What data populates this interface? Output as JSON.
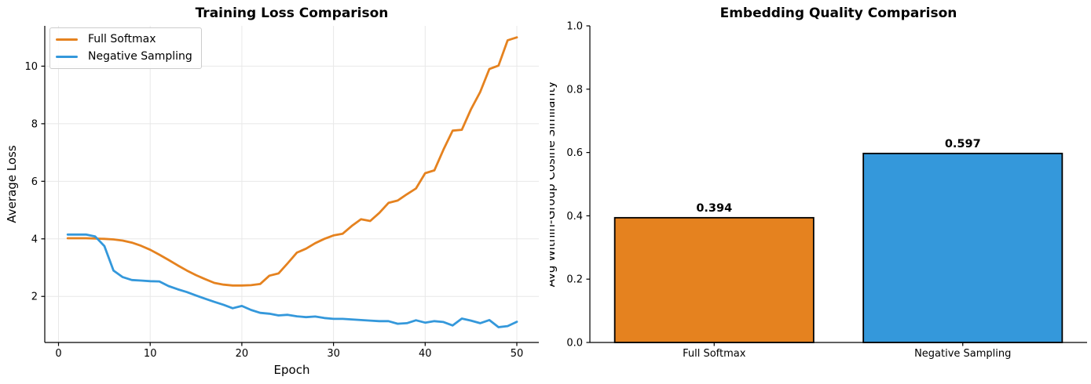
{
  "figure": {
    "background": "#ffffff",
    "text_color": "#000000",
    "grid_color": "#e8e8e8",
    "spine_color": "#000000"
  },
  "chart_data": [
    {
      "id": "training-loss",
      "type": "line",
      "title": "Training Loss Comparison",
      "xlabel": "Epoch",
      "ylabel": "Average Loss",
      "grid": true,
      "legend_position": "upper left",
      "xlim": [
        -1.5,
        52.4
      ],
      "ylim": [
        0.4,
        11.4
      ],
      "xticks": [
        0,
        10,
        20,
        30,
        40,
        50
      ],
      "yticks": [
        2,
        4,
        6,
        8,
        10
      ],
      "x": [
        1,
        2,
        3,
        4,
        5,
        6,
        7,
        8,
        9,
        10,
        11,
        12,
        13,
        14,
        15,
        16,
        17,
        18,
        19,
        20,
        21,
        22,
        23,
        24,
        25,
        26,
        27,
        28,
        29,
        30,
        31,
        32,
        33,
        34,
        35,
        36,
        37,
        38,
        39,
        40,
        41,
        42,
        43,
        44,
        45,
        46,
        47,
        48,
        49,
        50
      ],
      "series": [
        {
          "name": "Full Softmax",
          "color": "#e5821f",
          "values": [
            4.02,
            4.02,
            4.02,
            4.01,
            4.0,
            3.98,
            3.94,
            3.87,
            3.76,
            3.62,
            3.45,
            3.27,
            3.08,
            2.9,
            2.74,
            2.6,
            2.47,
            2.41,
            2.38,
            2.38,
            2.39,
            2.43,
            2.72,
            2.8,
            3.15,
            3.52,
            3.66,
            3.85,
            4.0,
            4.12,
            4.18,
            4.45,
            4.68,
            4.62,
            4.9,
            5.25,
            5.33,
            5.55,
            5.75,
            6.28,
            6.38,
            7.1,
            7.76,
            7.79,
            8.5,
            9.1,
            9.9,
            10.02,
            10.9,
            11.0
          ]
        },
        {
          "name": "Negative Sampling",
          "color": "#3498db",
          "values": [
            4.15,
            4.15,
            4.15,
            4.08,
            3.75,
            2.9,
            2.67,
            2.57,
            2.55,
            2.53,
            2.52,
            2.36,
            2.25,
            2.15,
            2.03,
            1.92,
            1.81,
            1.71,
            1.59,
            1.67,
            1.53,
            1.43,
            1.4,
            1.34,
            1.36,
            1.31,
            1.28,
            1.3,
            1.25,
            1.22,
            1.22,
            1.2,
            1.18,
            1.16,
            1.14,
            1.14,
            1.05,
            1.07,
            1.17,
            1.09,
            1.14,
            1.11,
            0.99,
            1.23,
            1.16,
            1.07,
            1.18,
            0.93,
            0.97,
            1.12
          ]
        }
      ]
    },
    {
      "id": "embedding-quality",
      "type": "bar",
      "title": "Embedding Quality Comparison",
      "xlabel": "",
      "ylabel": "Avg Within-Group Cosine Similarity",
      "grid": false,
      "ylim": [
        0,
        1
      ],
      "ytick_labels": [
        "0.0",
        "0.2",
        "0.4",
        "0.6",
        "0.8",
        "1.0"
      ],
      "categories": [
        "Full Softmax",
        "Negative Sampling"
      ],
      "values": [
        0.394,
        0.597
      ],
      "value_labels": [
        "0.394",
        "0.597"
      ],
      "bar_colors": [
        "#e5821f",
        "#3498db"
      ],
      "bar_edge_color": "#000000"
    }
  ],
  "legend": {
    "items": [
      {
        "label": "Full Softmax",
        "color": "#e5821f"
      },
      {
        "label": "Negative Sampling",
        "color": "#3498db"
      }
    ]
  }
}
